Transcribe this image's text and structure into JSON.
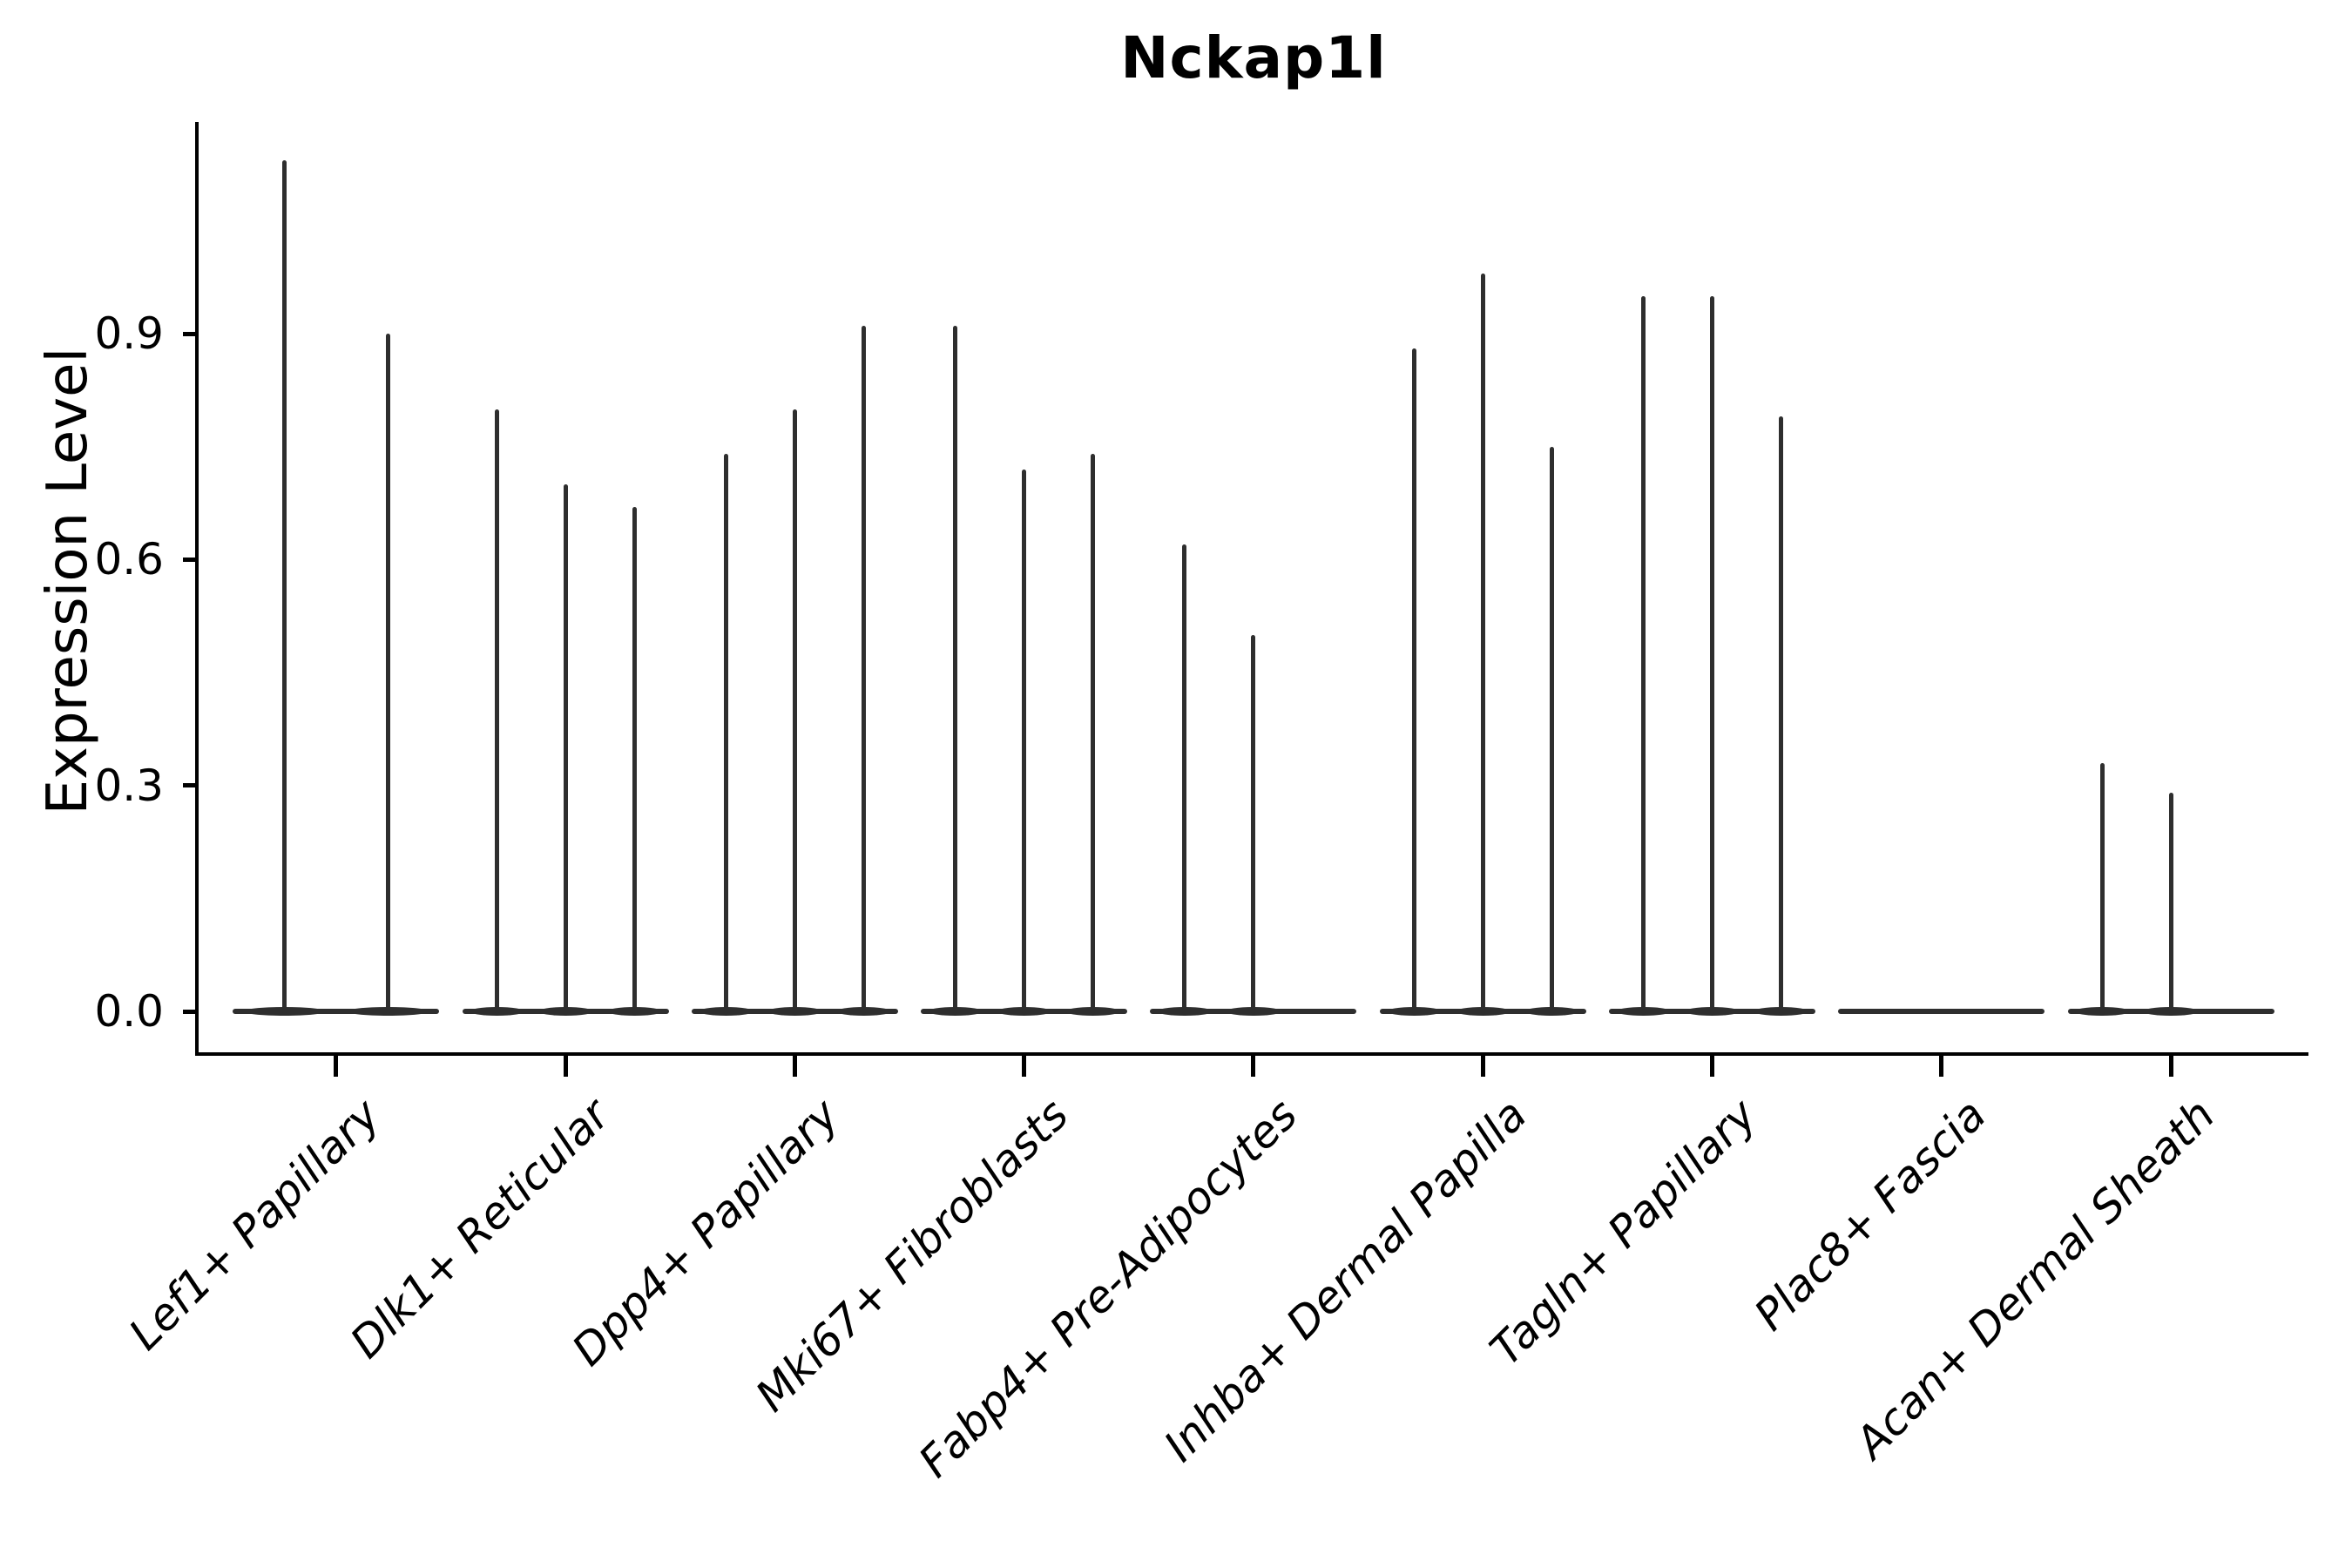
{
  "chart_data": {
    "type": "violin",
    "title": "Nckap1l",
    "ylabel": "Expression Level",
    "xlabel": "",
    "grid": false,
    "legend": "none",
    "violin_color": "#2e2e2e",
    "axis_color": "#000000",
    "ylim": [
      -0.055,
      1.18
    ],
    "ytick_values": [
      0.0,
      0.3,
      0.6,
      0.9
    ],
    "ytick_labels": [
      "0.0",
      "0.3",
      "0.6",
      "0.9"
    ],
    "categories": [
      "Lef1+ Papillary",
      "Dlk1+ Reticular",
      "Dpp4+ Papillary",
      "Mki67+ Fibroblasts",
      "Fabp4+ Pre-Adipocytes",
      "Inhba+ Dermal Papilla",
      "Tagln+ Papillary",
      "Plac8+ Fascia",
      "Acan+ Dermal Sheath"
    ],
    "groups": [
      {
        "label": "Lef1+ Papillary",
        "violin_maxima": [
          1.13,
          0.9
        ]
      },
      {
        "label": "Dlk1+ Reticular",
        "violin_maxima": [
          0.8,
          0.7,
          0.67
        ]
      },
      {
        "label": "Dpp4+ Papillary",
        "violin_maxima": [
          0.74,
          0.8,
          0.91
        ]
      },
      {
        "label": "Mki67+ Fibroblasts",
        "violin_maxima": [
          0.91,
          0.72,
          0.74
        ]
      },
      {
        "label": "Fabp4+ Pre-Adipocytes",
        "violin_maxima": [
          0.62,
          0.5,
          0
        ]
      },
      {
        "label": "Inhba+ Dermal Papilla",
        "violin_maxima": [
          0.88,
          0.98,
          0.75
        ]
      },
      {
        "label": "Tagln+ Papillary",
        "violin_maxima": [
          0.95,
          0.95,
          0.79
        ]
      },
      {
        "label": "Plac8+ Fascia",
        "violin_maxima": [
          0,
          0,
          0
        ]
      },
      {
        "label": "Acan+ Dermal Sheath",
        "violin_maxima": [
          0.33,
          0.29,
          0
        ]
      }
    ]
  }
}
